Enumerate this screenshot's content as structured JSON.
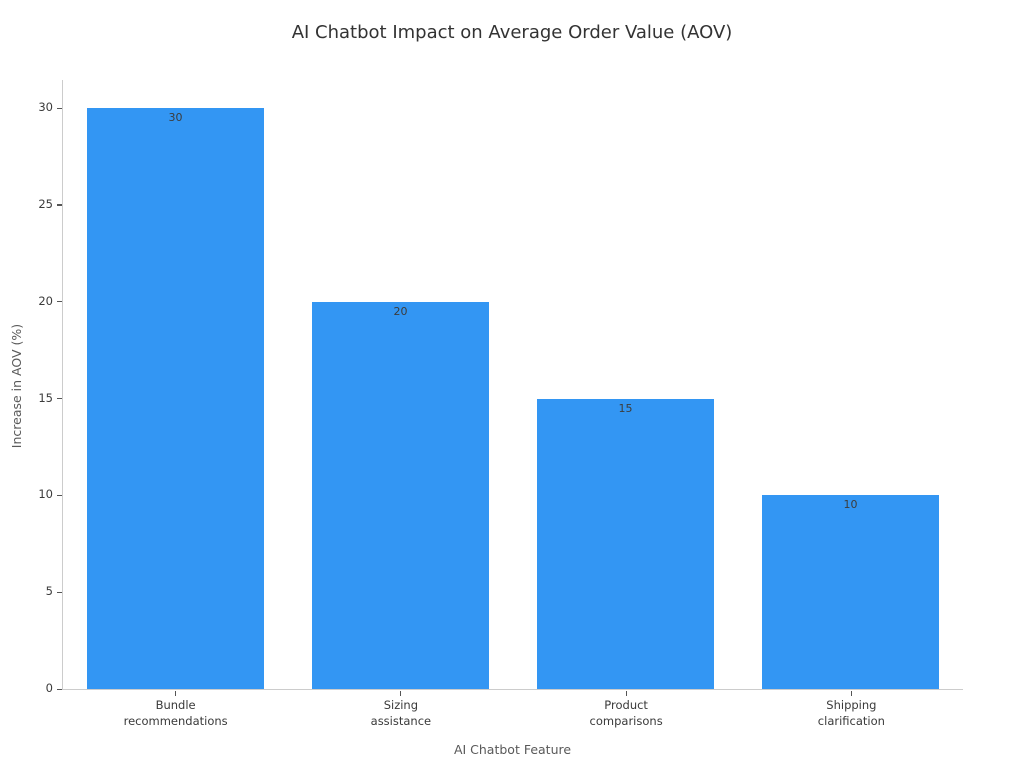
{
  "chart_data": {
    "type": "bar",
    "title": "AI Chatbot Impact on Average Order Value (AOV)",
    "xlabel": "AI Chatbot Feature",
    "ylabel": "Increase in AOV (%)",
    "categories": [
      "Bundle\nrecommendations",
      "Sizing\nassistance",
      "Product\ncomparisons",
      "Shipping\nclarification"
    ],
    "values": [
      30,
      20,
      15,
      10
    ],
    "bar_value_labels": [
      "30",
      "20",
      "15",
      "10"
    ],
    "yticks": [
      0,
      5,
      10,
      15,
      20,
      25,
      30
    ],
    "ylim": [
      0,
      31.5
    ],
    "bar_color": "#3396f3",
    "grid": false,
    "legend_position": "none"
  }
}
